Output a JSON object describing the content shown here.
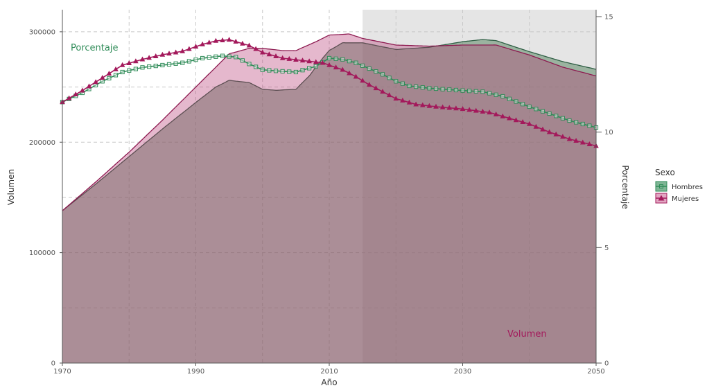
{
  "chart_data": {
    "type": "area",
    "xlabel": "Año",
    "ylabel_left": "Volumen",
    "ylabel_right": "Porcentaje",
    "xlim": [
      1970,
      2050
    ],
    "ylim_left": [
      0,
      320000
    ],
    "ylim_right": [
      0,
      15.3
    ],
    "x_ticks": [
      1970,
      1990,
      2010,
      2030,
      2050
    ],
    "y_left_ticks": [
      0,
      100000,
      200000,
      300000
    ],
    "y_left_tick_labels": [
      "0",
      "100000",
      "200000",
      "300000"
    ],
    "y_right_ticks": [
      0,
      5,
      10,
      15
    ],
    "y_right_tick_labels": [
      "0",
      "5",
      "10",
      "15"
    ],
    "grid": true,
    "projection_shade_start": 2015,
    "legend": {
      "title": "Sexo",
      "position": "right",
      "entries": [
        {
          "name": "Hombres",
          "color": "#2e8b57",
          "marker": "square"
        },
        {
          "name": "Mujeres",
          "color": "#a3195b",
          "marker": "triangle"
        }
      ]
    },
    "annotations": {
      "porcentaje": {
        "text": "Porcentaje",
        "color": "#2e8b57"
      },
      "volumen": {
        "text": "Volumen",
        "color": "#a3195b"
      }
    },
    "volume_series": [
      {
        "name": "Hombres",
        "color": "#2e8b57",
        "x": [
          1970,
          1975,
          1980,
          1985,
          1990,
          1993,
          1995,
          1998,
          2000,
          2002,
          2005,
          2007,
          2009,
          2010,
          2012,
          2015,
          2020,
          2025,
          2030,
          2033,
          2035,
          2040,
          2045,
          2050
        ],
        "y": [
          138000,
          162000,
          187000,
          212000,
          236000,
          250000,
          256000,
          254000,
          248000,
          247000,
          248000,
          260000,
          276000,
          283000,
          290000,
          290000,
          284000,
          286000,
          291000,
          293000,
          292000,
          282000,
          273000,
          266000
        ]
      },
      {
        "name": "Mujeres",
        "color": "#a3195b",
        "x": [
          1970,
          1975,
          1980,
          1985,
          1990,
          1993,
          1995,
          1998,
          2000,
          2003,
          2005,
          2008,
          2010,
          2013,
          2015,
          2020,
          2025,
          2030,
          2035,
          2040,
          2045,
          2050
        ],
        "y": [
          138000,
          164000,
          191000,
          220000,
          250000,
          268000,
          280000,
          285000,
          285000,
          283000,
          283000,
          291000,
          297000,
          298000,
          294000,
          288000,
          287000,
          288000,
          288000,
          279000,
          268000,
          260000
        ]
      }
    ],
    "percent_series": [
      {
        "name": "Hombres",
        "color": "#2e8b57",
        "marker": "square",
        "x": [
          1970,
          1973,
          1976,
          1979,
          1982,
          1985,
          1988,
          1991,
          1994,
          1996,
          1998,
          2000,
          2002,
          2005,
          2008,
          2010,
          2012,
          2014,
          2016,
          2018,
          2020,
          2022,
          2025,
          2030,
          2033,
          2036,
          2040,
          2043,
          2046,
          2050
        ],
        "y": [
          11.3,
          11.7,
          12.2,
          12.6,
          12.8,
          12.9,
          13.0,
          13.2,
          13.3,
          13.25,
          12.95,
          12.7,
          12.65,
          12.6,
          12.85,
          13.2,
          13.15,
          13.0,
          12.75,
          12.5,
          12.2,
          12.0,
          11.9,
          11.8,
          11.75,
          11.55,
          11.1,
          10.8,
          10.5,
          10.2
        ]
      },
      {
        "name": "Mujeres",
        "color": "#a3195b",
        "marker": "triangle",
        "x": [
          1970,
          1973,
          1976,
          1979,
          1982,
          1985,
          1988,
          1991,
          1993,
          1995,
          1998,
          2000,
          2003,
          2006,
          2009,
          2012,
          2014,
          2016,
          2018,
          2020,
          2023,
          2026,
          2030,
          2034,
          2037,
          2040,
          2043,
          2046,
          2050
        ],
        "y": [
          11.3,
          11.8,
          12.35,
          12.9,
          13.15,
          13.35,
          13.5,
          13.8,
          13.95,
          14.0,
          13.75,
          13.45,
          13.2,
          13.1,
          13.0,
          12.7,
          12.4,
          12.05,
          11.75,
          11.45,
          11.2,
          11.1,
          11.0,
          10.85,
          10.6,
          10.35,
          10.0,
          9.7,
          9.4
        ]
      }
    ]
  }
}
